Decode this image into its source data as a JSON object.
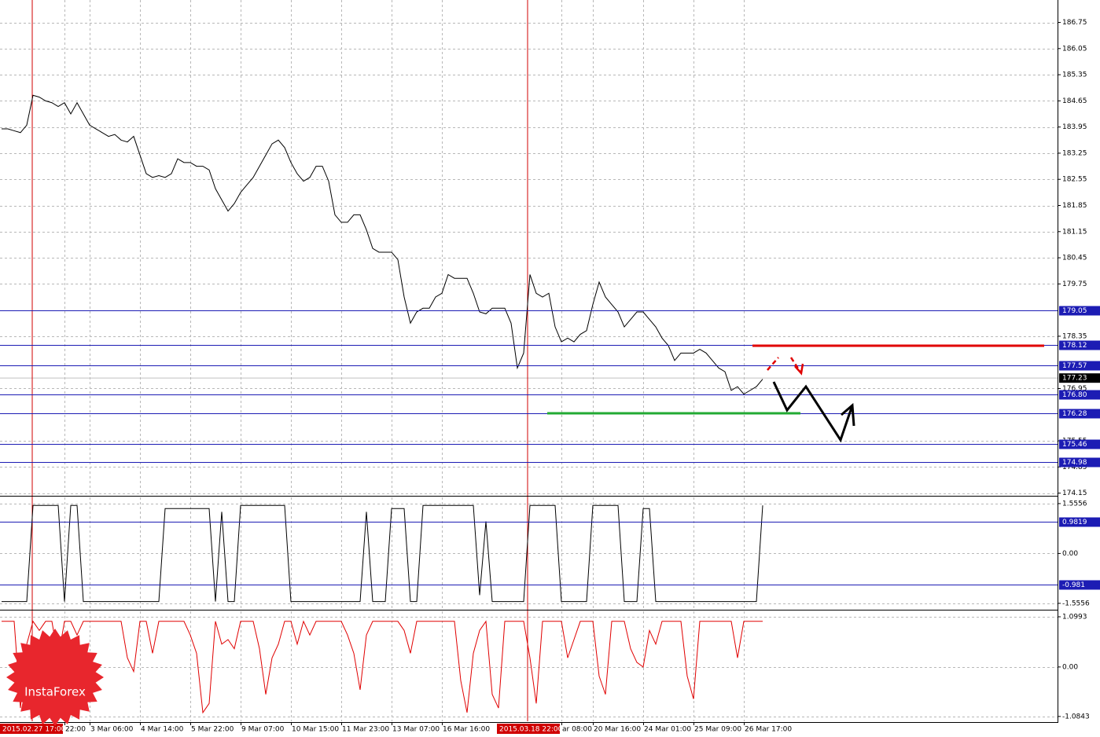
{
  "chart_data": [
    {
      "type": "line",
      "color": "#000000",
      "grid": true,
      "categories": [
        null,
        null,
        null,
        null,
        null,
        null,
        null,
        null,
        null,
        null,
        "22:00",
        null,
        null,
        null,
        "3 Mar 06:00",
        null,
        null,
        null,
        null,
        null,
        null,
        null,
        "4 Mar 14:00",
        null,
        null,
        null,
        null,
        null,
        null,
        null,
        "5 Mar 22:00",
        null,
        null,
        null,
        null,
        null,
        null,
        null,
        "9 Mar 07:00",
        null,
        null,
        null,
        null,
        null,
        null,
        null,
        "10 Mar 15:00",
        null,
        null,
        null,
        null,
        null,
        null,
        null,
        "11 Mar 23:00",
        null,
        null,
        null,
        null,
        null,
        null,
        null,
        "13 Mar 07:00",
        null,
        null,
        null,
        null,
        null,
        null,
        null,
        "16 Mar 16:00",
        null,
        null,
        null,
        null,
        null,
        null,
        null,
        null,
        null,
        null,
        null,
        null,
        null,
        null,
        null,
        null,
        null,
        null,
        "ar 08:00",
        null,
        null,
        null,
        null,
        "20 Mar 16:00",
        null,
        null,
        null,
        null,
        null,
        null,
        null,
        "24 Mar 01:00",
        null,
        null,
        null,
        null,
        null,
        null,
        null,
        "25 Mar 09:00",
        null,
        null,
        null,
        null,
        null,
        null,
        null,
        "26 Mar 17:00",
        null,
        null,
        null
      ],
      "values": [
        183.9,
        183.9,
        183.85,
        183.8,
        184.0,
        184.8,
        184.75,
        184.65,
        184.6,
        184.5,
        184.6,
        184.3,
        184.6,
        184.3,
        184.0,
        183.9,
        183.8,
        183.7,
        183.75,
        183.6,
        183.55,
        183.7,
        183.2,
        182.7,
        182.6,
        182.65,
        182.6,
        182.7,
        183.1,
        183.0,
        183.0,
        182.9,
        182.9,
        182.8,
        182.3,
        182.0,
        181.7,
        181.9,
        182.2,
        182.4,
        182.6,
        182.9,
        183.2,
        183.5,
        183.6,
        183.4,
        183.0,
        182.7,
        182.5,
        182.6,
        182.9,
        182.9,
        182.5,
        181.6,
        181.4,
        181.4,
        181.6,
        181.6,
        181.2,
        180.7,
        180.6,
        180.6,
        180.6,
        180.4,
        179.4,
        178.7,
        179.0,
        179.1,
        179.1,
        179.4,
        179.5,
        180.0,
        179.9,
        179.9,
        179.9,
        179.5,
        179.0,
        178.95,
        179.1,
        179.1,
        179.1,
        178.7,
        177.5,
        177.9,
        180.0,
        179.5,
        179.4,
        179.5,
        178.6,
        178.2,
        178.3,
        178.2,
        178.4,
        178.5,
        179.2,
        179.8,
        179.4,
        179.2,
        179.0,
        178.6,
        178.8,
        179.0,
        179.0,
        178.8,
        178.6,
        178.3,
        178.1,
        177.7,
        177.9,
        177.9,
        177.9,
        178.0,
        177.9,
        177.7,
        177.5,
        177.4,
        176.9,
        177.0,
        176.8,
        176.9,
        177.0,
        177.2
      ],
      "ylim": [
        174.1,
        187.35
      ],
      "yticks": [
        186.75,
        186.05,
        185.35,
        184.65,
        183.95,
        183.25,
        182.55,
        181.85,
        181.15,
        180.45,
        179.75,
        178.35,
        176.95,
        175.55,
        174.85,
        174.15
      ],
      "levels": [
        179.05,
        178.12,
        177.57,
        {
          "value": 176.8,
          "label": "176.80"
        },
        176.28,
        175.46,
        174.98
      ],
      "level_color": "#1c1cb4",
      "last_price": 177.23,
      "annotations": [
        "2015.02.27 17:00",
        "2015.03.18 22:00"
      ]
    },
    {
      "type": "line",
      "color": "#000000",
      "grid": true,
      "values": [
        -1.5,
        -1.5,
        -1.5,
        -1.5,
        -1.5,
        1.5,
        1.5,
        1.5,
        1.5,
        1.5,
        -1.5,
        1.5,
        1.5,
        -1.5,
        -1.5,
        -1.5,
        -1.5,
        -1.5,
        -1.5,
        -1.5,
        -1.5,
        -1.5,
        -1.5,
        -1.5,
        -1.5,
        -1.5,
        1.4,
        1.4,
        1.4,
        1.4,
        1.4,
        1.4,
        1.4,
        1.4,
        -1.5,
        1.3,
        -1.5,
        -1.5,
        1.5,
        1.5,
        1.5,
        1.5,
        1.5,
        1.5,
        1.5,
        1.5,
        -1.5,
        -1.5,
        -1.5,
        -1.5,
        -1.5,
        -1.5,
        -1.5,
        -1.5,
        -1.5,
        -1.5,
        -1.5,
        -1.5,
        1.3,
        -1.5,
        -1.5,
        -1.5,
        1.4,
        1.4,
        1.4,
        -1.5,
        -1.5,
        1.5,
        1.5,
        1.5,
        1.5,
        1.5,
        1.5,
        1.5,
        1.5,
        1.5,
        -1.3,
        1.0,
        -1.5,
        -1.5,
        -1.5,
        -1.5,
        -1.5,
        -1.5,
        1.5,
        1.5,
        1.5,
        1.5,
        1.5,
        -1.5,
        -1.5,
        -1.5,
        -1.5,
        -1.5,
        1.5,
        1.5,
        1.5,
        1.5,
        1.5,
        -1.5,
        -1.5,
        -1.5,
        1.4,
        1.4,
        -1.5,
        -1.5,
        -1.5,
        -1.5,
        -1.5,
        -1.5,
        -1.5,
        -1.5,
        -1.5,
        -1.5,
        -1.5,
        -1.5,
        -1.5,
        -1.5,
        -1.5,
        -1.5,
        -1.5,
        1.5
      ],
      "ylim": [
        -1.73,
        1.75
      ],
      "yticks": [
        1.5556,
        {
          "value": 0,
          "label": "0.00"
        },
        -1.5556
      ],
      "levels": [
        0.9819,
        -0.981
      ],
      "level_color": "#1c1cb4"
    },
    {
      "type": "line",
      "color": "#e00000",
      "grid": true,
      "values": [
        1,
        1,
        1,
        -0.9,
        0.5,
        1,
        0.8,
        1,
        1,
        0.2,
        1,
        1,
        0.7,
        1,
        1,
        1,
        1,
        1,
        1,
        1,
        0.2,
        -0.1,
        1,
        1,
        0.3,
        1,
        1,
        1,
        1,
        1,
        0.7,
        0.3,
        -1,
        -0.8,
        1,
        0.5,
        0.6,
        0.4,
        1,
        1,
        1,
        0.4,
        -0.6,
        0.2,
        0.5,
        1,
        1,
        0.5,
        1,
        0.7,
        1,
        1,
        1,
        1,
        1,
        0.7,
        0.3,
        -0.5,
        0.7,
        1,
        1,
        1,
        1,
        1,
        0.8,
        0.3,
        1,
        1,
        1,
        1,
        1,
        1,
        1,
        -0.3,
        -1,
        0.3,
        0.8,
        1,
        -0.6,
        -0.9,
        1,
        1,
        1,
        1,
        0.2,
        -0.8,
        1,
        1,
        1,
        1,
        0.2,
        0.6,
        1,
        1,
        1,
        -0.2,
        -0.6,
        1,
        1,
        1,
        0.4,
        0.1,
        0.0,
        0.8,
        0.5,
        1,
        1,
        1,
        1,
        -0.2,
        -0.7,
        1,
        1,
        1,
        1,
        1,
        1,
        0.2,
        1,
        1,
        1,
        1
      ],
      "ylim": [
        -1.19,
        1.22
      ],
      "yticks": [
        1.0993,
        {
          "value": 0,
          "label": "0.00"
        },
        -1.0843
      ]
    }
  ],
  "watermark": "InstaForex"
}
